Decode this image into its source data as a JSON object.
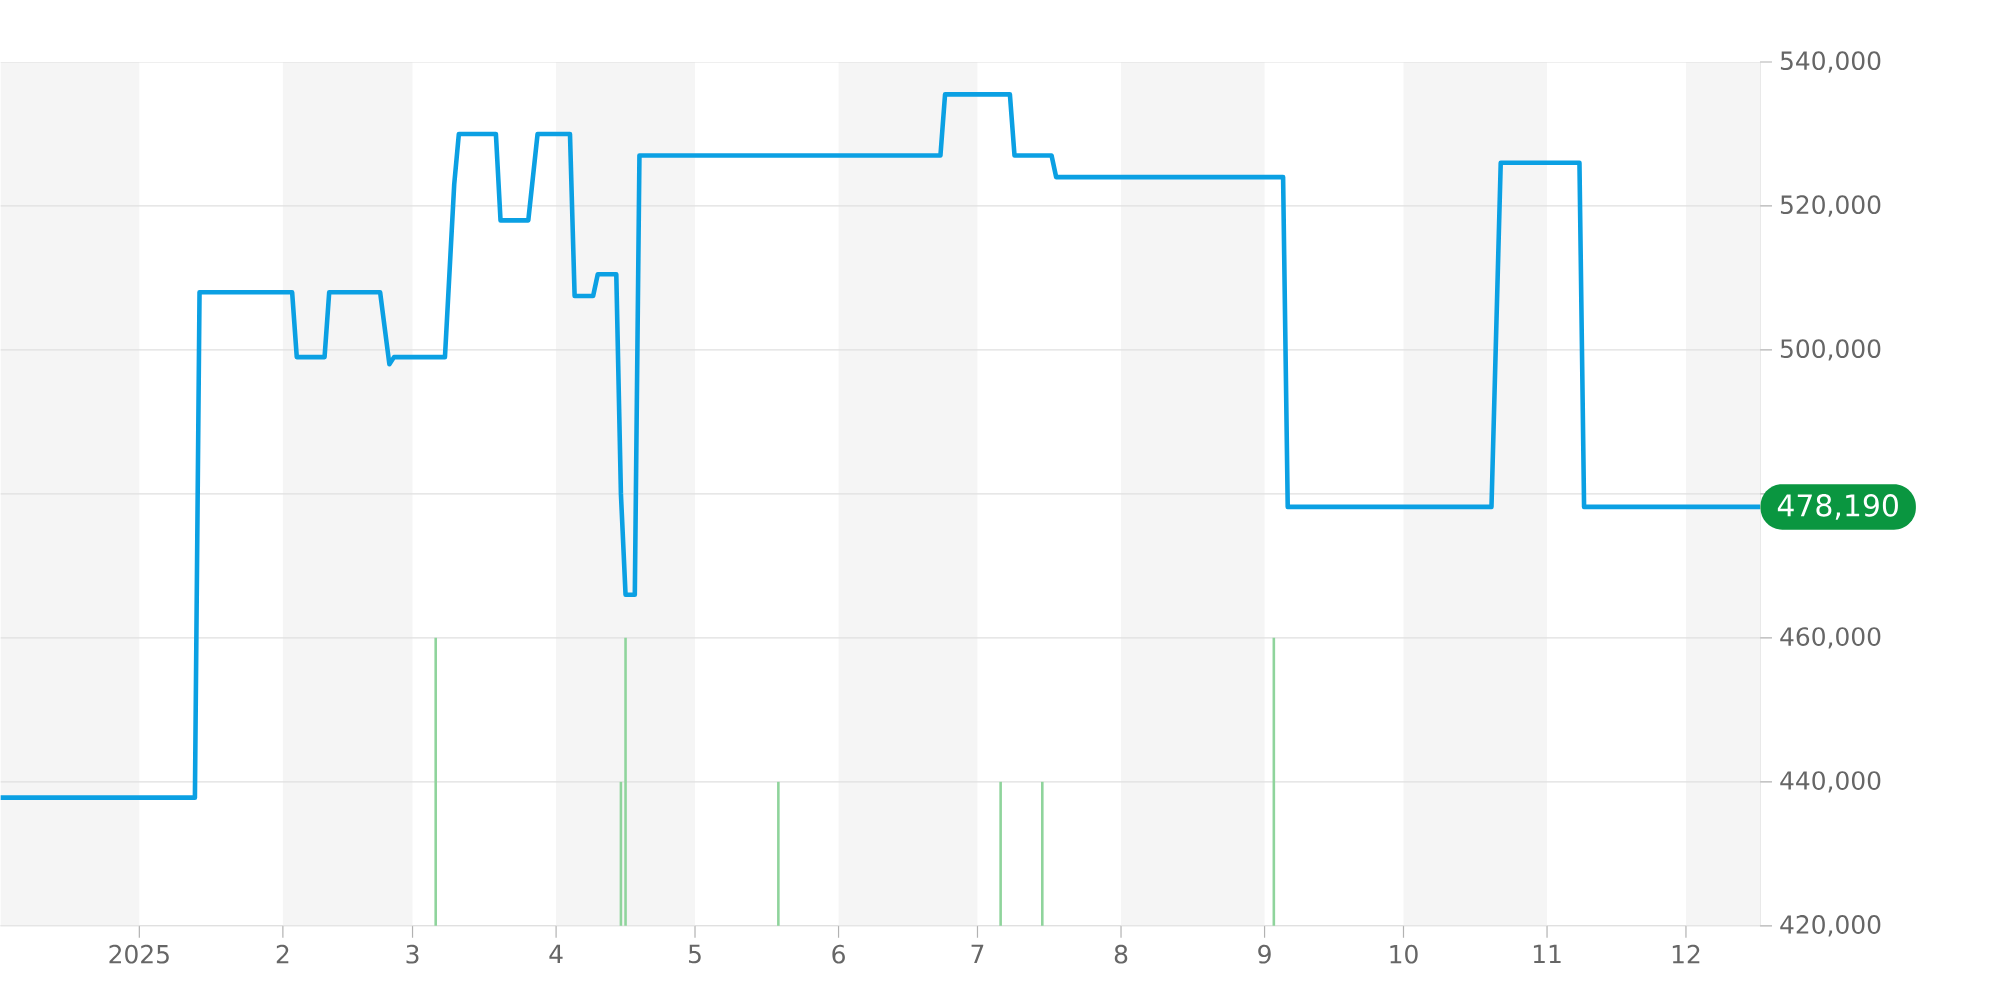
{
  "chart_data": {
    "type": "line",
    "xlim": [
      "2024-12-02",
      "2025-12-17"
    ],
    "ylim": [
      420000,
      540000
    ],
    "xticks": [
      {
        "value": "2025-01-01",
        "label": "2025"
      },
      {
        "value": "2025-02-01",
        "label": "2"
      },
      {
        "value": "2025-03-01",
        "label": "3"
      },
      {
        "value": "2025-04-01",
        "label": "4"
      },
      {
        "value": "2025-05-01",
        "label": "5"
      },
      {
        "value": "2025-06-01",
        "label": "6"
      },
      {
        "value": "2025-07-01",
        "label": "7"
      },
      {
        "value": "2025-08-01",
        "label": "8"
      },
      {
        "value": "2025-09-01",
        "label": "9"
      },
      {
        "value": "2025-10-01",
        "label": "10"
      },
      {
        "value": "2025-11-01",
        "label": "11"
      },
      {
        "value": "2025-12-01",
        "label": "12"
      }
    ],
    "yticks": [
      {
        "value": 420000,
        "label": "420,000"
      },
      {
        "value": 440000,
        "label": "440,000"
      },
      {
        "value": 460000,
        "label": "460,000"
      },
      {
        "value": 480000,
        "label": null
      },
      {
        "value": 500000,
        "label": "500,000"
      },
      {
        "value": 520000,
        "label": "520,000"
      },
      {
        "value": 540000,
        "label": "540,000"
      }
    ],
    "grid": "y",
    "series": [
      {
        "color": "#0ba0e3",
        "x": [
          "2024-12-02",
          "2025-01-13",
          "2025-01-14",
          "2025-02-03",
          "2025-02-04",
          "2025-02-10",
          "2025-02-11",
          "2025-02-22",
          "2025-02-24",
          "2025-02-25",
          "2025-03-08",
          "2025-03-10",
          "2025-03-11",
          "2025-03-19",
          "2025-03-20",
          "2025-03-26",
          "2025-03-28",
          "2025-04-04",
          "2025-04-05",
          "2025-04-09",
          "2025-04-10",
          "2025-04-14",
          "2025-04-15",
          "2025-04-16",
          "2025-04-18",
          "2025-04-19",
          "2025-06-23",
          "2025-06-24",
          "2025-07-08",
          "2025-07-09",
          "2025-07-17",
          "2025-07-18",
          "2025-09-05",
          "2025-09-06",
          "2025-10-20",
          "2025-10-22",
          "2025-11-08",
          "2025-11-09",
          "2025-12-17"
        ],
        "values": [
          437800,
          437800,
          508000,
          508000,
          499000,
          499000,
          508000,
          508000,
          498000,
          499000,
          499000,
          523000,
          530000,
          530000,
          518000,
          518000,
          530000,
          530000,
          507500,
          507500,
          510500,
          510500,
          480000,
          466000,
          466000,
          527000,
          527000,
          535500,
          535500,
          527000,
          527000,
          524000,
          524000,
          478190,
          478190,
          526000,
          526000,
          478190,
          478190
        ]
      },
      {
        "type": "bar",
        "color": "#8fd49c",
        "x": [
          "2025-03-06",
          "2025-04-15",
          "2025-04-16",
          "2025-05-19",
          "2025-07-06",
          "2025-07-15",
          "2025-09-03"
        ],
        "values": [
          460000,
          440000,
          460000,
          440000,
          440000,
          440000,
          460000
        ]
      }
    ],
    "bands": [
      {
        "axis": "x",
        "from": "2024-12-02",
        "to": "2025-01-01",
        "color": "#f5f5f5"
      },
      {
        "axis": "x",
        "from": "2025-02-01",
        "to": "2025-03-01",
        "color": "#f5f5f5"
      },
      {
        "axis": "x",
        "from": "2025-04-01",
        "to": "2025-05-01",
        "color": "#f5f5f5"
      },
      {
        "axis": "x",
        "from": "2025-06-01",
        "to": "2025-07-01",
        "color": "#f5f5f5"
      },
      {
        "axis": "x",
        "from": "2025-08-01",
        "to": "2025-09-01",
        "color": "#f5f5f5"
      },
      {
        "axis": "x",
        "from": "2025-10-01",
        "to": "2025-11-01",
        "color": "#f5f5f5"
      },
      {
        "axis": "x",
        "from": "2025-12-01",
        "to": "2025-12-17",
        "color": "#f5f5f5"
      }
    ],
    "annotations": [
      {
        "text": "478,190",
        "x": "2025-12-17",
        "y": 478190
      }
    ]
  }
}
